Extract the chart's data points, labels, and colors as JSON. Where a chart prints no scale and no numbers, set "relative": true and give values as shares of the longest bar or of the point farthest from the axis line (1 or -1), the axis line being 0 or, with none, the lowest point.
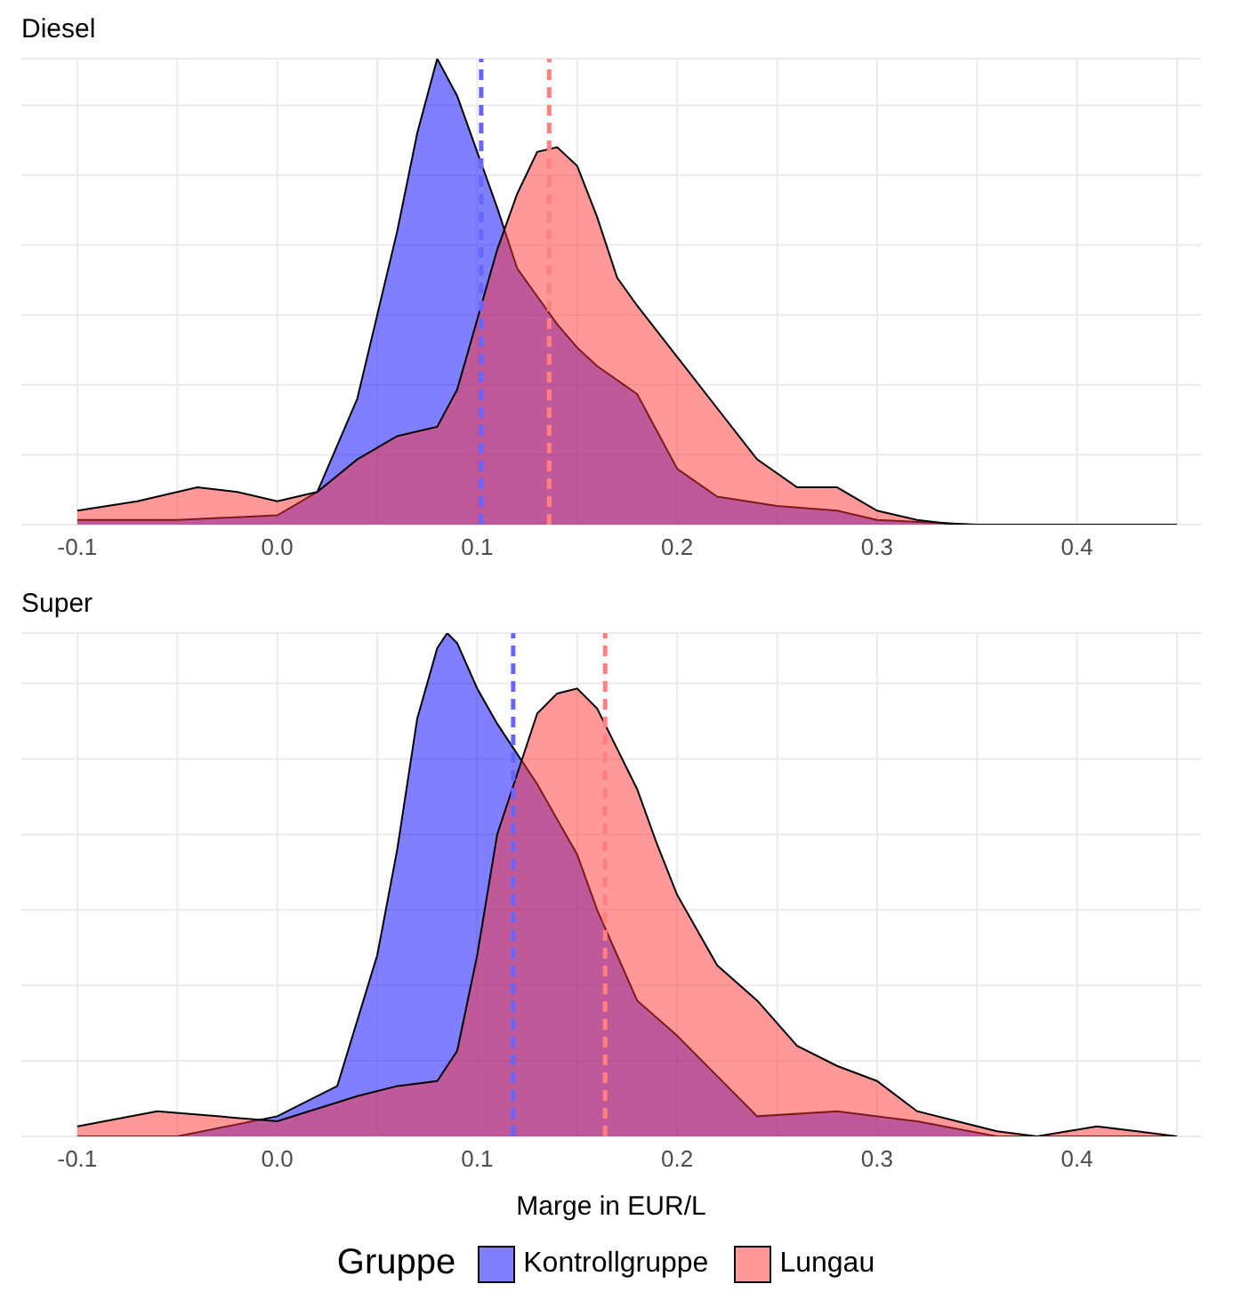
{
  "chart_data": [
    {
      "type": "area",
      "title": "Diesel",
      "relative": true,
      "grid": true,
      "xlim": [
        -0.128,
        0.462
      ],
      "xticks": [
        -0.1,
        {
          "value": -0.05,
          "label": null
        },
        {
          "value": 0,
          "label": "0.0"
        },
        {
          "value": 0.05,
          "label": null
        },
        0.1,
        {
          "value": 0.15,
          "label": null
        },
        0.2,
        {
          "value": 0.25,
          "label": null
        },
        0.3,
        {
          "value": 0.35,
          "label": null
        },
        0.4,
        {
          "value": 0.45,
          "label": null
        }
      ],
      "series": [
        {
          "color": "#0000ff",
          "x": [
            -0.1,
            -0.05,
            0.0,
            0.02,
            0.04,
            0.06,
            0.07,
            0.08,
            0.09,
            0.1,
            0.11,
            0.12,
            0.13,
            0.14,
            0.15,
            0.16,
            0.18,
            0.2,
            0.22,
            0.25,
            0.28,
            0.3,
            0.35,
            0.45
          ],
          "values": [
            0.01,
            0.01,
            0.02,
            0.07,
            0.27,
            0.63,
            0.84,
            1.0,
            0.92,
            0.8,
            0.68,
            0.55,
            0.49,
            0.43,
            0.38,
            0.34,
            0.28,
            0.12,
            0.06,
            0.04,
            0.03,
            0.01,
            0,
            0
          ]
        },
        {
          "color": "#ff3333",
          "x": [
            -0.1,
            -0.07,
            -0.04,
            -0.02,
            0.0,
            0.02,
            0.04,
            0.06,
            0.08,
            0.09,
            0.1,
            0.11,
            0.12,
            0.13,
            0.14,
            0.15,
            0.16,
            0.17,
            0.18,
            0.2,
            0.22,
            0.24,
            0.26,
            0.28,
            0.3,
            0.32,
            0.34,
            0.45
          ],
          "values": [
            0.03,
            0.05,
            0.08,
            0.07,
            0.05,
            0.07,
            0.14,
            0.19,
            0.21,
            0.29,
            0.44,
            0.59,
            0.71,
            0.8,
            0.81,
            0.77,
            0.66,
            0.53,
            0.47,
            0.36,
            0.25,
            0.14,
            0.08,
            0.08,
            0.03,
            0.01,
            0,
            0
          ]
        }
      ],
      "ref_lines": [
        {
          "axis": "x",
          "value": 0.102,
          "color": "#6666ff",
          "line_style": "dashed"
        },
        {
          "axis": "x",
          "value": 0.136,
          "color": "#ff8080",
          "line_style": "dashed"
        }
      ]
    },
    {
      "type": "area",
      "title": "Super",
      "xlabel": "Marge in EUR/L",
      "legend_title": "Gruppe",
      "legend": "bottom",
      "relative": true,
      "grid": true,
      "xlim": [
        -0.128,
        0.462
      ],
      "xticks": [
        -0.1,
        {
          "value": -0.05,
          "label": null
        },
        {
          "value": 0,
          "label": "0.0"
        },
        {
          "value": 0.05,
          "label": null
        },
        0.1,
        {
          "value": 0.15,
          "label": null
        },
        0.2,
        {
          "value": 0.25,
          "label": null
        },
        0.3,
        {
          "value": 0.35,
          "label": null
        },
        0.4,
        {
          "value": 0.45,
          "label": null
        }
      ],
      "series": [
        {
          "name": "Kontrollgruppe",
          "color": "#0000ff",
          "x": [
            -0.1,
            -0.05,
            0.0,
            0.03,
            0.05,
            0.06,
            0.07,
            0.08,
            0.085,
            0.09,
            0.1,
            0.11,
            0.12,
            0.13,
            0.14,
            0.15,
            0.16,
            0.17,
            0.18,
            0.2,
            0.22,
            0.24,
            0.28,
            0.32,
            0.36,
            0.45
          ],
          "values": [
            0,
            0,
            0.04,
            0.1,
            0.36,
            0.57,
            0.83,
            0.97,
            1.0,
            0.98,
            0.89,
            0.82,
            0.76,
            0.7,
            0.63,
            0.56,
            0.45,
            0.36,
            0.27,
            0.2,
            0.12,
            0.04,
            0.05,
            0.03,
            0,
            0
          ]
        },
        {
          "name": "Lungau",
          "color": "#ff3333",
          "x": [
            -0.1,
            -0.06,
            -0.03,
            0.0,
            0.04,
            0.06,
            0.08,
            0.09,
            0.1,
            0.11,
            0.12,
            0.13,
            0.14,
            0.15,
            0.16,
            0.17,
            0.18,
            0.19,
            0.2,
            0.22,
            0.24,
            0.26,
            0.28,
            0.3,
            0.32,
            0.36,
            0.38,
            0.41,
            0.43,
            0.45
          ],
          "values": [
            0.02,
            0.05,
            0.04,
            0.03,
            0.08,
            0.1,
            0.11,
            0.17,
            0.36,
            0.6,
            0.72,
            0.84,
            0.88,
            0.89,
            0.85,
            0.77,
            0.69,
            0.58,
            0.48,
            0.34,
            0.27,
            0.18,
            0.14,
            0.11,
            0.05,
            0.01,
            0,
            0.02,
            0.01,
            0
          ]
        }
      ],
      "ref_lines": [
        {
          "axis": "x",
          "value": 0.118,
          "color": "#6666ff",
          "line_style": "dashed"
        },
        {
          "axis": "x",
          "value": 0.164,
          "color": "#ff8080",
          "line_style": "dashed"
        }
      ]
    }
  ]
}
